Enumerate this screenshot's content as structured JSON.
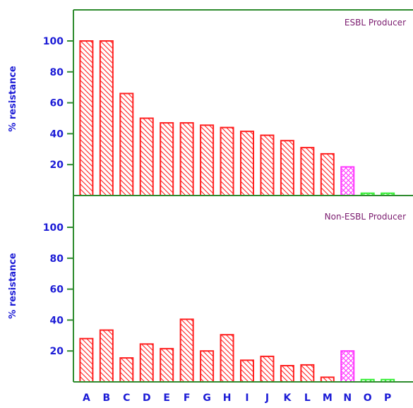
{
  "chart_data": [
    {
      "type": "bar",
      "panel_label": "ESBL Producer",
      "ylabel": "% resistance",
      "ylim": [
        0,
        120
      ],
      "yticks": [
        20,
        40,
        60,
        80,
        100
      ],
      "categories": [
        "A",
        "B",
        "C",
        "D",
        "E",
        "F",
        "G",
        "H",
        "I",
        "J",
        "K",
        "L",
        "M",
        "N",
        "O",
        "P"
      ],
      "values": [
        100,
        100,
        66,
        50,
        47,
        47,
        45.5,
        44,
        41.5,
        39,
        35.5,
        31,
        27,
        18.5,
        1.5,
        1.5
      ],
      "bar_colors": [
        "#ff2020",
        "#ff2020",
        "#ff2020",
        "#ff2020",
        "#ff2020",
        "#ff2020",
        "#ff2020",
        "#ff2020",
        "#ff2020",
        "#ff2020",
        "#ff2020",
        "#ff2020",
        "#ff2020",
        "#ff33ff",
        "#33ee33",
        "#33ee33"
      ],
      "bar_patterns": [
        "diagonal",
        "diagonal",
        "diagonal",
        "diagonal",
        "diagonal",
        "diagonal",
        "diagonal",
        "diagonal",
        "diagonal",
        "diagonal",
        "diagonal",
        "diagonal",
        "diagonal",
        "crosshatch",
        "crosshatch",
        "crosshatch"
      ]
    },
    {
      "type": "bar",
      "panel_label": "Non-ESBL Producer",
      "ylabel": "% resistance",
      "ylim": [
        0,
        120
      ],
      "yticks": [
        20,
        40,
        60,
        80,
        100
      ],
      "categories": [
        "A",
        "B",
        "C",
        "D",
        "E",
        "F",
        "G",
        "H",
        "I",
        "J",
        "K",
        "L",
        "M",
        "N",
        "O",
        "P"
      ],
      "values": [
        28,
        33.5,
        15.5,
        24.5,
        21.5,
        40.5,
        20,
        30.5,
        14,
        16.5,
        10.5,
        11,
        3,
        20,
        1.5,
        1.5
      ],
      "bar_colors": [
        "#ff2020",
        "#ff2020",
        "#ff2020",
        "#ff2020",
        "#ff2020",
        "#ff2020",
        "#ff2020",
        "#ff2020",
        "#ff2020",
        "#ff2020",
        "#ff2020",
        "#ff2020",
        "#ff2020",
        "#ff33ff",
        "#33ee33",
        "#33ee33"
      ],
      "bar_patterns": [
        "diagonal",
        "diagonal",
        "diagonal",
        "diagonal",
        "diagonal",
        "diagonal",
        "diagonal",
        "diagonal",
        "diagonal",
        "diagonal",
        "diagonal",
        "diagonal",
        "diagonal",
        "crosshatch",
        "crosshatch",
        "crosshatch"
      ]
    }
  ],
  "colors": {
    "axis": "#2e8b2e",
    "tick_label": "#1c1cd6",
    "panel_label": "#7a1a6e"
  }
}
